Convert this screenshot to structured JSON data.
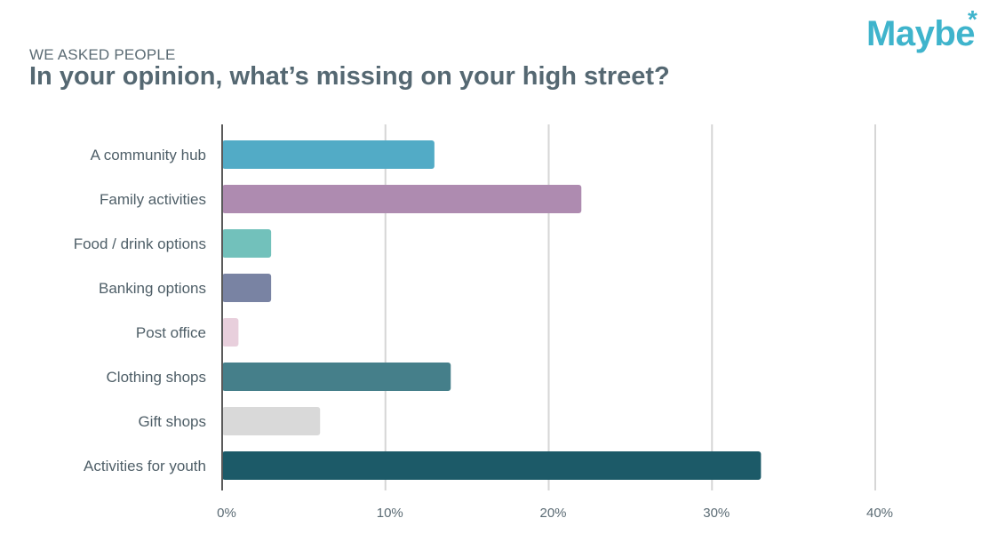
{
  "header": {
    "eyebrow": "WE ASKED PEOPLE",
    "title": "In your opinion, what’s missing on your high street?"
  },
  "logo": {
    "text": "Maybe",
    "mark": "*"
  },
  "chart_data": {
    "type": "bar",
    "orientation": "horizontal",
    "categories": [
      "A community hub",
      "Family activities",
      "Food / drink options",
      "Banking options",
      "Post office",
      "Clothing shops",
      "Gift shops",
      "Activities for youth"
    ],
    "values": [
      13,
      22,
      3,
      3,
      1,
      14,
      6,
      33
    ],
    "colors": [
      "#52abc6",
      "#ae8bb0",
      "#72c1bb",
      "#7983a3",
      "#e8cfdc",
      "#457f8a",
      "#d9d9d9",
      "#1c5a68"
    ],
    "xlim": [
      0,
      40
    ],
    "xticks": [
      "0%",
      "10%",
      "20%",
      "30%",
      "40%"
    ],
    "grid": true,
    "xlabel": "",
    "ylabel": ""
  }
}
